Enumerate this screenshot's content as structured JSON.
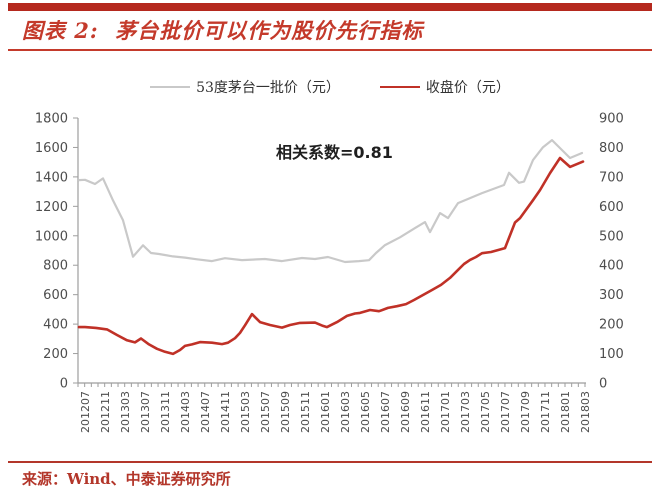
{
  "header": {
    "title": "图表 2:  茅台批价可以作为股价先行指标"
  },
  "annotation": {
    "text": "相关系数=0.81"
  },
  "footer": {
    "source": "来源：Wind、中泰证券研究所"
  },
  "colors": {
    "top_bar": "#b5291e",
    "title_red": "#c43a2b",
    "rule_red": "#b3362a",
    "axis_line": "#9e9e9e",
    "axis_text": "#4d4d4d",
    "annotation_text": "#1f1f1f"
  },
  "chart_data": {
    "type": "line",
    "title": "",
    "annotation": "相关系数=0.81",
    "grid": false,
    "legend_position": "top",
    "x_labels": [
      "201207",
      "201211",
      "201303",
      "201307",
      "201311",
      "201403",
      "201407",
      "201411",
      "201503",
      "201507",
      "201509",
      "201511",
      "201601",
      "201603",
      "201605",
      "201607",
      "201609",
      "201611",
      "201701",
      "201703",
      "201705",
      "201707",
      "201709",
      "201711",
      "201801",
      "201803"
    ],
    "left_axis": {
      "min": 0,
      "max": 1800,
      "step": 200
    },
    "right_axis": {
      "min": 0,
      "max": 900,
      "step": 100
    },
    "x_note": "series points are [x,value]; x in label-index units, 0 = 201207 tick, 25 = 201803 tick",
    "series": [
      {
        "name": "53度茅台一批价（元）",
        "axis": "left",
        "color": "#c9c9c9",
        "points": [
          [
            -0.3,
            1378
          ],
          [
            0,
            1380
          ],
          [
            0.5,
            1352
          ],
          [
            0.9,
            1390
          ],
          [
            1.4,
            1240
          ],
          [
            1.9,
            1105
          ],
          [
            2.4,
            858
          ],
          [
            2.9,
            935
          ],
          [
            3.3,
            883
          ],
          [
            3.7,
            876
          ],
          [
            4.4,
            860
          ],
          [
            5.0,
            852
          ],
          [
            5.6,
            840
          ],
          [
            6.35,
            828
          ],
          [
            7.0,
            848
          ],
          [
            7.85,
            835
          ],
          [
            9.0,
            842
          ],
          [
            9.85,
            828
          ],
          [
            10.85,
            849
          ],
          [
            11.5,
            842
          ],
          [
            12.15,
            856
          ],
          [
            13.0,
            822
          ],
          [
            13.7,
            828
          ],
          [
            14.2,
            834
          ],
          [
            14.55,
            883
          ],
          [
            15.0,
            937
          ],
          [
            15.75,
            990
          ],
          [
            16.5,
            1052
          ],
          [
            17.0,
            1093
          ],
          [
            17.25,
            1025
          ],
          [
            17.75,
            1154
          ],
          [
            18.15,
            1120
          ],
          [
            18.65,
            1222
          ],
          [
            19.25,
            1256
          ],
          [
            19.85,
            1290
          ],
          [
            20.95,
            1345
          ],
          [
            21.2,
            1428
          ],
          [
            21.7,
            1360
          ],
          [
            21.95,
            1368
          ],
          [
            22.4,
            1514
          ],
          [
            22.9,
            1602
          ],
          [
            23.35,
            1650
          ],
          [
            24.25,
            1528
          ],
          [
            24.85,
            1562
          ]
        ]
      },
      {
        "name": "收盘价（元）",
        "axis": "right",
        "color": "#c03127",
        "points": [
          [
            -0.3,
            190
          ],
          [
            0,
            190
          ],
          [
            0.55,
            187
          ],
          [
            1.1,
            182
          ],
          [
            1.6,
            163
          ],
          [
            2.1,
            145
          ],
          [
            2.5,
            138
          ],
          [
            2.8,
            151
          ],
          [
            3.2,
            131
          ],
          [
            3.6,
            116
          ],
          [
            4.0,
            106
          ],
          [
            4.4,
            99
          ],
          [
            4.75,
            112
          ],
          [
            5.0,
            126
          ],
          [
            5.35,
            131
          ],
          [
            5.75,
            139
          ],
          [
            6.35,
            137
          ],
          [
            6.85,
            132
          ],
          [
            7.15,
            137
          ],
          [
            7.5,
            152
          ],
          [
            7.75,
            170
          ],
          [
            8.0,
            196
          ],
          [
            8.35,
            234
          ],
          [
            8.75,
            207
          ],
          [
            9.25,
            197
          ],
          [
            9.85,
            188
          ],
          [
            10.25,
            197
          ],
          [
            10.75,
            204
          ],
          [
            11.5,
            205
          ],
          [
            11.9,
            194
          ],
          [
            12.1,
            190
          ],
          [
            12.6,
            207
          ],
          [
            13.1,
            228
          ],
          [
            13.5,
            236
          ],
          [
            13.75,
            238
          ],
          [
            14.25,
            248
          ],
          [
            14.7,
            244
          ],
          [
            15.15,
            255
          ],
          [
            15.6,
            261
          ],
          [
            16.05,
            268
          ],
          [
            16.45,
            282
          ],
          [
            16.9,
            299
          ],
          [
            17.35,
            316
          ],
          [
            17.8,
            333
          ],
          [
            18.25,
            357
          ],
          [
            18.65,
            384
          ],
          [
            18.95,
            404
          ],
          [
            19.25,
            418
          ],
          [
            19.55,
            428
          ],
          [
            19.85,
            441
          ],
          [
            20.3,
            445
          ],
          [
            21.0,
            458
          ],
          [
            21.5,
            545
          ],
          [
            21.75,
            560
          ],
          [
            22.4,
            621
          ],
          [
            22.75,
            655
          ],
          [
            23.25,
            713
          ],
          [
            23.75,
            764
          ],
          [
            24.25,
            734
          ],
          [
            24.9,
            752
          ]
        ]
      }
    ]
  }
}
